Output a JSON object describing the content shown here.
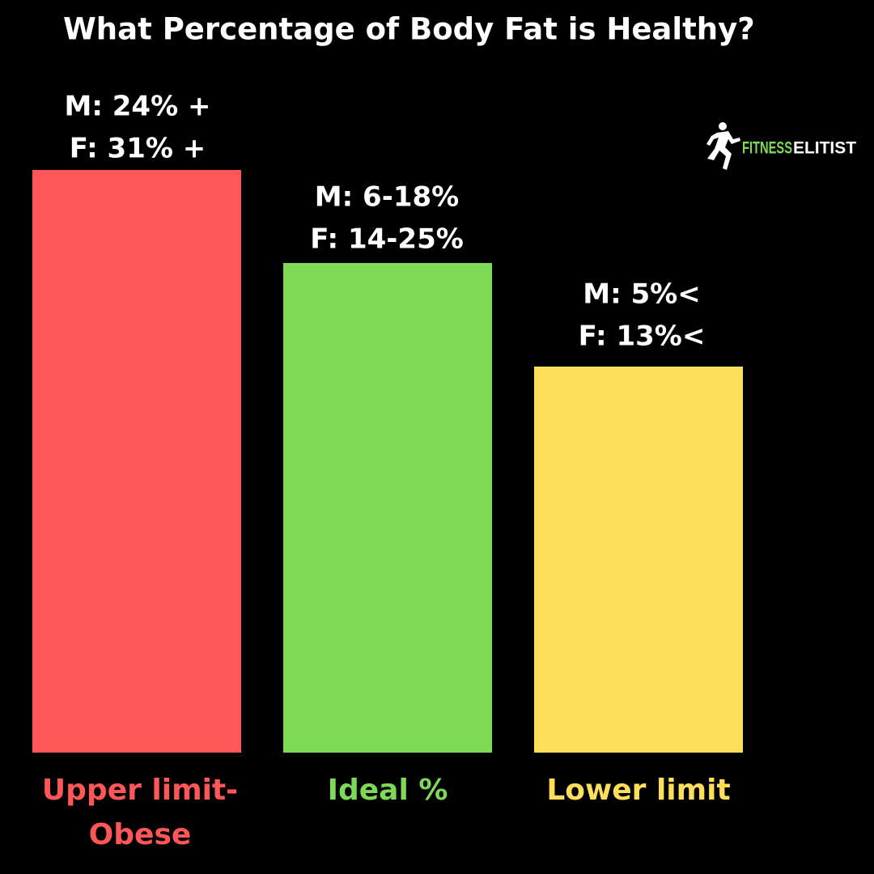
{
  "title": "What Percentage of Body Fat is Healthy?",
  "logo": {
    "text_1": "FITNESS",
    "text_2": "ELITIST"
  },
  "bars": [
    {
      "label_lines": [
        "M: 24% +",
        "F: 31% +"
      ],
      "name_lines": [
        "Upper limit-",
        "Obese"
      ],
      "color": "#ff5757"
    },
    {
      "label_lines": [
        "M: 6-18%",
        "F: 14-25%"
      ],
      "name_lines": [
        "Ideal %"
      ],
      "color": "#7ed957"
    },
    {
      "label_lines": [
        "M: 5%<",
        "F: 13%<"
      ],
      "name_lines": [
        "Lower limit"
      ],
      "color": "#ffde59"
    }
  ]
}
